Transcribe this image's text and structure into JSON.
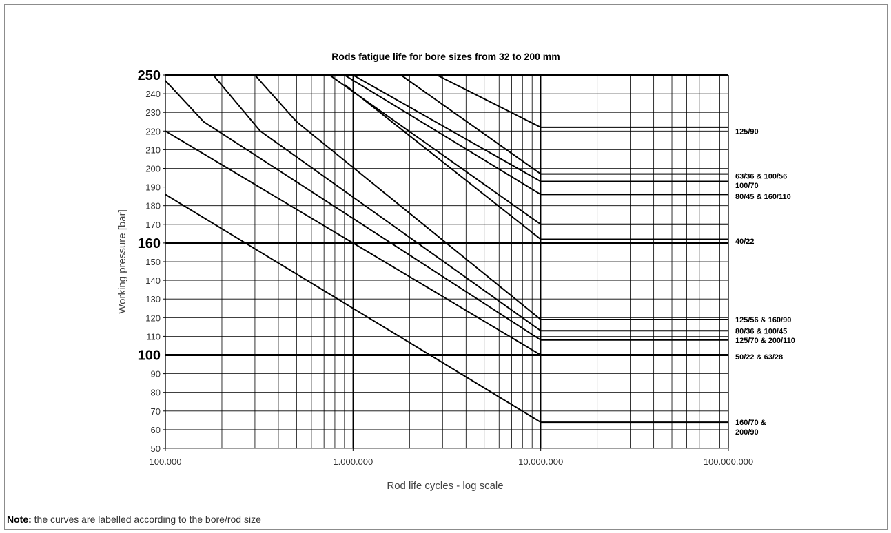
{
  "note": {
    "prefix": "Note:",
    "text": " the curves are labelled according to the bore/rod size"
  },
  "chart_data": {
    "type": "line",
    "title": "Rods fatigue life for bore sizes from 32 to 200 mm",
    "xlabel": "Rod life cycles - log scale",
    "ylabel": "Working pressure [bar]",
    "xscale": "log",
    "xlim": [
      100000,
      100000000
    ],
    "ylim": [
      50,
      250
    ],
    "grid": true,
    "x_ticks": [
      {
        "value": 100000,
        "label": "100.000"
      },
      {
        "value": 1000000,
        "label": "1.000.000"
      },
      {
        "value": 10000000,
        "label": "10.000.000"
      },
      {
        "value": 100000000,
        "label": "100.000.000"
      }
    ],
    "y_ticks": [
      {
        "value": 50,
        "label": "50"
      },
      {
        "value": 60,
        "label": "60"
      },
      {
        "value": 70,
        "label": "70"
      },
      {
        "value": 80,
        "label": "80"
      },
      {
        "value": 90,
        "label": "90"
      },
      {
        "value": 100,
        "label": "100",
        "major": true
      },
      {
        "value": 110,
        "label": "110"
      },
      {
        "value": 120,
        "label": "120"
      },
      {
        "value": 130,
        "label": "130"
      },
      {
        "value": 140,
        "label": "140"
      },
      {
        "value": 150,
        "label": "150"
      },
      {
        "value": 160,
        "label": "160",
        "major": true
      },
      {
        "value": 170,
        "label": "170"
      },
      {
        "value": 180,
        "label": "180"
      },
      {
        "value": 190,
        "label": "190"
      },
      {
        "value": 200,
        "label": "200"
      },
      {
        "value": 210,
        "label": "210"
      },
      {
        "value": 220,
        "label": "220"
      },
      {
        "value": 230,
        "label": "230"
      },
      {
        "value": 240,
        "label": "240"
      },
      {
        "value": 250,
        "label": "250",
        "major": true
      }
    ],
    "reference_lines": [
      100,
      160,
      250
    ],
    "series": [
      {
        "x": [
          2800000,
          10000000,
          100000000
        ],
        "y": [
          250,
          222,
          222
        ]
      },
      {
        "x": [
          1800000,
          10000000,
          100000000
        ],
        "y": [
          250,
          197,
          197
        ]
      },
      {
        "x": [
          1000000,
          10000000,
          100000000
        ],
        "y": [
          250,
          193,
          193
        ]
      },
      {
        "x": [
          900000,
          10000000,
          100000000
        ],
        "y": [
          250,
          186,
          186
        ]
      },
      {
        "x": [
          750000,
          10000000,
          100000000
        ],
        "y": [
          250,
          170,
          170
        ]
      },
      {
        "x": [
          900000,
          10000000,
          100000000
        ],
        "y": [
          245,
          162,
          162
        ]
      },
      {
        "x": [
          300000,
          500000,
          10000000,
          100000000
        ],
        "y": [
          250,
          225,
          119,
          119
        ]
      },
      {
        "x": [
          180000,
          320000,
          10000000,
          100000000
        ],
        "y": [
          250,
          220,
          113,
          113
        ]
      },
      {
        "x": [
          100000,
          160000,
          10000000,
          100000000
        ],
        "y": [
          247,
          225,
          108,
          108
        ]
      },
      {
        "x": [
          100000,
          10000000,
          100000000
        ],
        "y": [
          220,
          100,
          100
        ]
      },
      {
        "x": [
          100000,
          10000000,
          100000000
        ],
        "y": [
          186,
          64,
          64
        ]
      }
    ],
    "curve_labels": [
      {
        "lines": [
          "125/90"
        ],
        "y": 220
      },
      {
        "lines": [
          "63/36 & 100/56"
        ],
        "y": 196
      },
      {
        "lines": [
          "100/70"
        ],
        "y": 191
      },
      {
        "lines": [
          "80/45 & 160/110"
        ],
        "y": 185
      },
      {
        "lines": [
          "40/22"
        ],
        "y": 161
      },
      {
        "lines": [
          "125/56 & 160/90"
        ],
        "y": 119
      },
      {
        "lines": [
          "80/36 & 100/45"
        ],
        "y": 113
      },
      {
        "lines": [
          "125/70 & 200/110"
        ],
        "y": 108
      },
      {
        "lines": [
          "50/22 & 63/28"
        ],
        "y": 99
      },
      {
        "lines": [
          "160/70 &",
          "200/90"
        ],
        "y": 64
      }
    ]
  }
}
